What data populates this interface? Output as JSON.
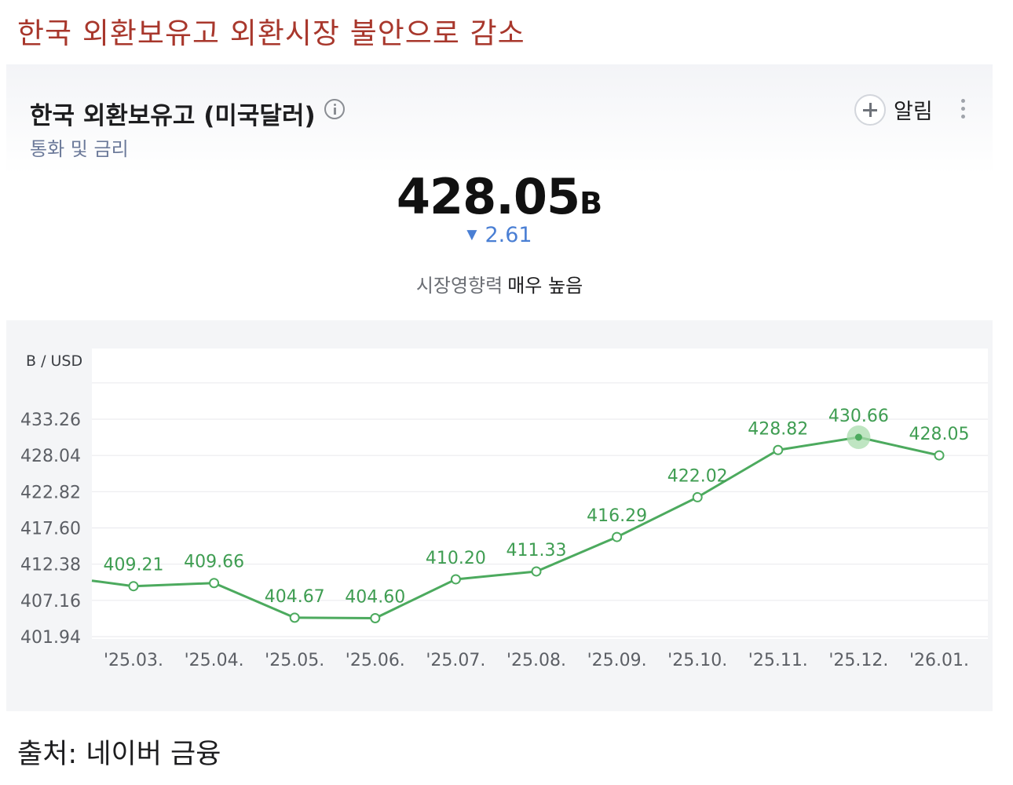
{
  "headline": "한국 외환보유고 외환시장 불안으로 감소",
  "card": {
    "title": "한국 외환보유고 (미국달러)",
    "subtitle": "통화 및 금리",
    "alarm_label": "알림",
    "value": "428.05",
    "value_unit": "B",
    "change_symbol": "▼",
    "change": "2.61",
    "influence_label": "시장영향력",
    "influence_value": "매우 높음"
  },
  "icons": {
    "info": "info-icon",
    "alarm_add": "plus-icon",
    "more": "more-vertical-icon",
    "change_direction": "triangle-down-icon"
  },
  "colors": {
    "headline": "#a8372c",
    "line": "#4caa5e",
    "label": "#3f9d52",
    "change": "#4a7fd4",
    "subtitle": "#6c7a9a"
  },
  "chart_data": {
    "type": "line",
    "ylabel": "B / USD",
    "categories": [
      "'25.03.",
      "'25.04.",
      "'25.05.",
      "'25.06.",
      "'25.07.",
      "'25.08.",
      "'25.09.",
      "'25.10.",
      "'25.11.",
      "'25.12.",
      "'26.01."
    ],
    "values": [
      409.21,
      409.66,
      404.67,
      404.6,
      410.2,
      411.33,
      416.29,
      422.02,
      428.82,
      430.66,
      428.05
    ],
    "value_labels": [
      "409.21",
      "409.66",
      "404.67",
      "404.60",
      "410.20",
      "411.33",
      "416.29",
      "422.02",
      "428.82",
      "430.66",
      "428.05"
    ],
    "prev_value": 410.0,
    "y_ticks": [
      "433.26",
      "428.04",
      "422.82",
      "417.60",
      "412.38",
      "407.16",
      "401.94"
    ],
    "ylim": [
      401.94,
      433.26
    ],
    "highlight_index": 9,
    "grid": true
  },
  "source": "출처: 네이버 금융"
}
